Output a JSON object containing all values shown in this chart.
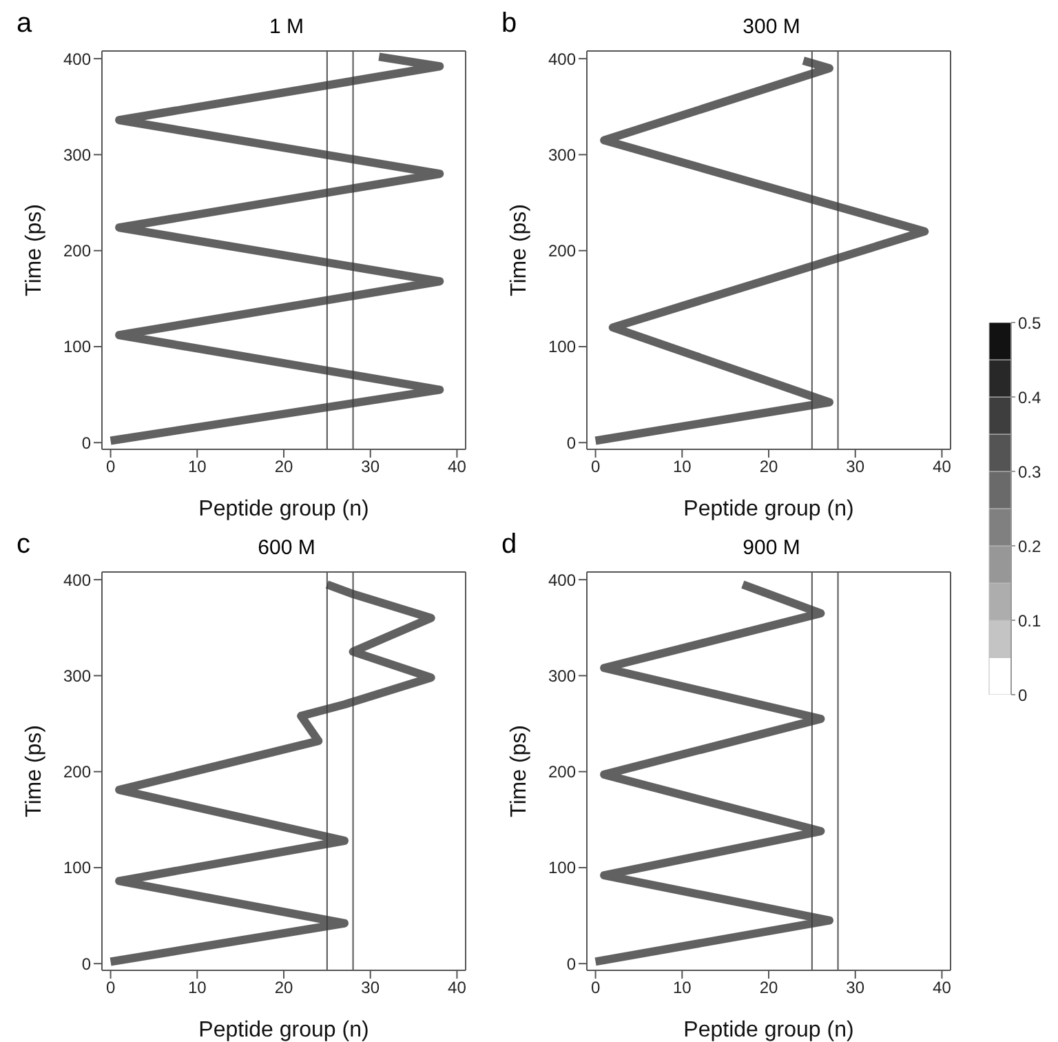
{
  "chart_data": [
    {
      "type": "line",
      "title": "1 M",
      "annotations": [
        "a"
      ],
      "xlabel": "Peptide group (n)",
      "ylabel": "Time (ps)",
      "xlim": [
        -1,
        41
      ],
      "ylim": [
        -7,
        408
      ],
      "xticks": [
        0,
        10,
        20,
        30,
        40
      ],
      "yticks": [
        0,
        100,
        200,
        300,
        400
      ],
      "marker": "none",
      "line_style": "solid",
      "ref_lines": [
        {
          "axis": "x",
          "value": 25,
          "color": "#555555"
        },
        {
          "axis": "x",
          "value": 28,
          "color": "#555555"
        }
      ],
      "series": [
        {
          "color": "#3a3a3a",
          "x": [
            0,
            38,
            1,
            38,
            1,
            38,
            1,
            38,
            31
          ],
          "values": [
            2,
            55,
            112,
            168,
            224,
            280,
            336,
            392,
            402
          ]
        }
      ]
    },
    {
      "type": "line",
      "title": "300 M",
      "annotations": [
        "b"
      ],
      "xlabel": "Peptide group (n)",
      "ylabel": "Time (ps)",
      "xlim": [
        -1,
        41
      ],
      "ylim": [
        -7,
        408
      ],
      "xticks": [
        0,
        10,
        20,
        30,
        40
      ],
      "yticks": [
        0,
        100,
        200,
        300,
        400
      ],
      "marker": "none",
      "line_style": "solid",
      "ref_lines": [
        {
          "axis": "x",
          "value": 25,
          "color": "#555555"
        },
        {
          "axis": "x",
          "value": 28,
          "color": "#555555"
        }
      ],
      "series": [
        {
          "color": "#3a3a3a",
          "x": [
            0,
            27,
            2,
            38,
            1,
            27,
            24
          ],
          "values": [
            2,
            42,
            120,
            220,
            315,
            390,
            398
          ]
        }
      ]
    },
    {
      "type": "line",
      "title": "600 M",
      "annotations": [
        "c"
      ],
      "xlabel": "Peptide group (n)",
      "ylabel": "Time (ps)",
      "xlim": [
        -1,
        41
      ],
      "ylim": [
        -7,
        408
      ],
      "xticks": [
        0,
        10,
        20,
        30,
        40
      ],
      "yticks": [
        0,
        100,
        200,
        300,
        400
      ],
      "marker": "none",
      "line_style": "solid",
      "ref_lines": [
        {
          "axis": "x",
          "value": 25,
          "color": "#555555"
        },
        {
          "axis": "x",
          "value": 28,
          "color": "#555555"
        }
      ],
      "series": [
        {
          "color": "#3a3a3a",
          "x": [
            0,
            27,
            1,
            27,
            1,
            24,
            22,
            27,
            37,
            28,
            37,
            28,
            25
          ],
          "values": [
            2,
            42,
            86,
            128,
            181,
            232,
            258,
            270,
            298,
            325,
            360,
            385,
            395
          ]
        }
      ]
    },
    {
      "type": "line",
      "title": "900 M",
      "annotations": [
        "d"
      ],
      "xlabel": "Peptide group (n)",
      "ylabel": "Time (ps)",
      "xlim": [
        -1,
        41
      ],
      "ylim": [
        -7,
        408
      ],
      "xticks": [
        0,
        10,
        20,
        30,
        40
      ],
      "yticks": [
        0,
        100,
        200,
        300,
        400
      ],
      "marker": "none",
      "line_style": "solid",
      "ref_lines": [
        {
          "axis": "x",
          "value": 25,
          "color": "#555555"
        },
        {
          "axis": "x",
          "value": 28,
          "color": "#555555"
        }
      ],
      "series": [
        {
          "color": "#3a3a3a",
          "x": [
            0,
            27,
            1,
            26,
            1,
            26,
            1,
            26,
            17
          ],
          "values": [
            2,
            45,
            92,
            138,
            197,
            255,
            308,
            365,
            395
          ]
        }
      ]
    },
    {
      "type": "bar",
      "stacked": true,
      "categories": [
        null
      ],
      "ylim": [
        0,
        0.5
      ],
      "yticks": [
        0,
        0.1,
        0.2,
        0.3,
        0.4,
        0.5
      ],
      "tick_labels": "y",
      "series": [
        {
          "color": "#ffffff",
          "values": [
            0.05
          ]
        },
        {
          "color": "#c4c4c4",
          "values": [
            0.05
          ]
        },
        {
          "color": "#adadad",
          "values": [
            0.05
          ]
        },
        {
          "color": "#979797",
          "values": [
            0.05
          ]
        },
        {
          "color": "#808080",
          "values": [
            0.05
          ]
        },
        {
          "color": "#6a6a6a",
          "values": [
            0.05
          ]
        },
        {
          "color": "#545454",
          "values": [
            0.05
          ]
        },
        {
          "color": "#3e3e3e",
          "values": [
            0.05
          ]
        },
        {
          "color": "#282828",
          "values": [
            0.05
          ]
        },
        {
          "color": "#121212",
          "values": [
            0.05
          ]
        }
      ]
    }
  ]
}
